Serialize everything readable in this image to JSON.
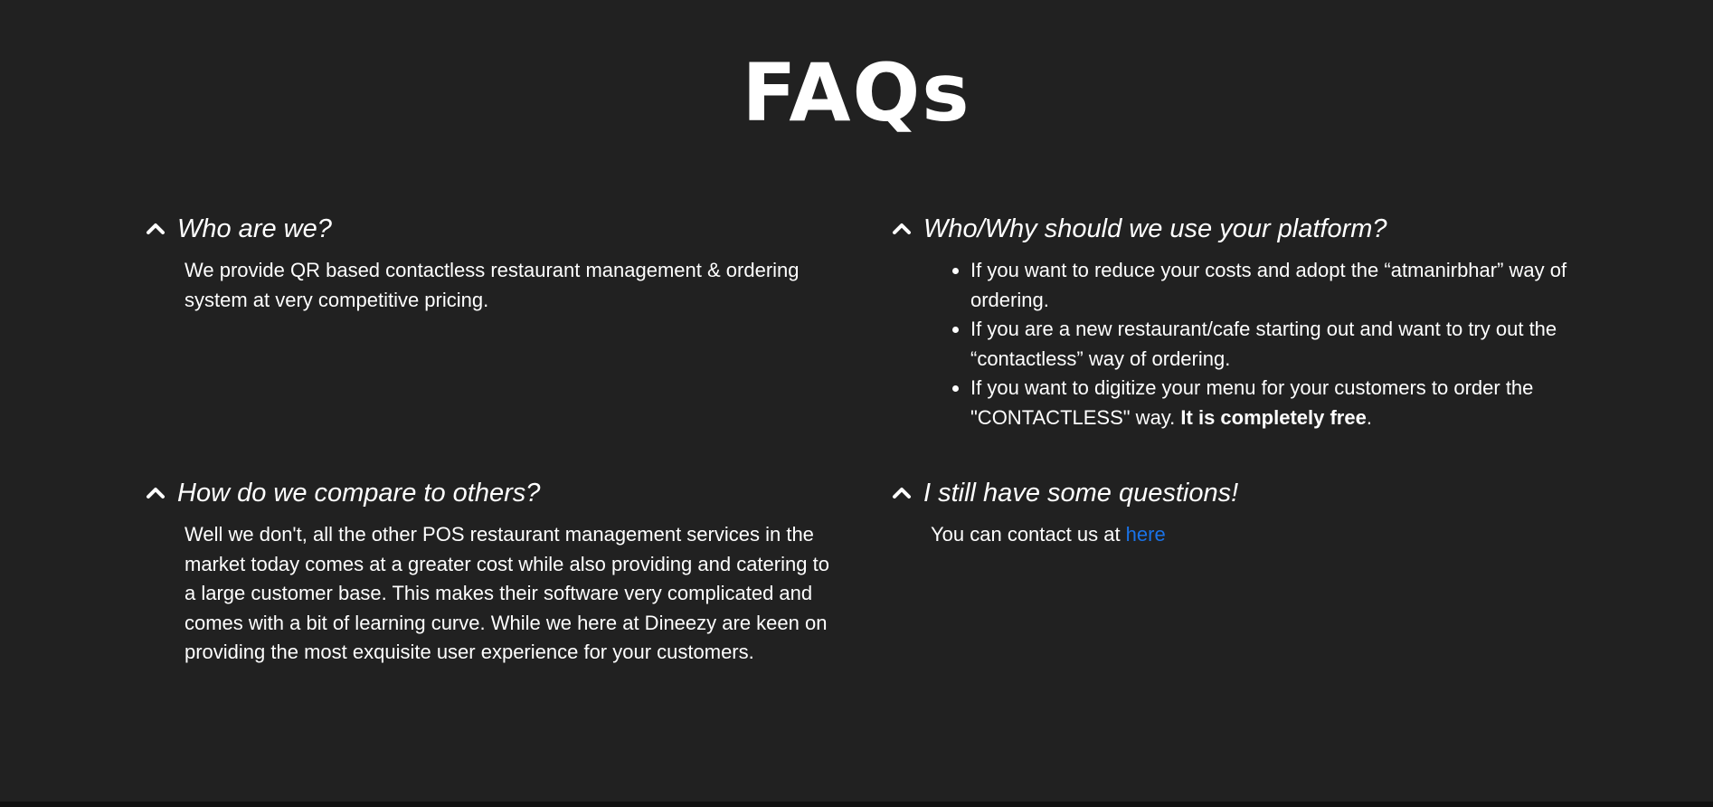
{
  "page": {
    "title": "FAQs"
  },
  "faqs": [
    {
      "question": "Who are we?",
      "answer": "We provide QR based contactless restaurant management & ordering system at very competitive pricing."
    },
    {
      "question": "Who/Why should we use your platform?",
      "bullets": [
        "If you want to reduce your costs and adopt the “atmanirbhar” way of ordering.",
        "If you are a new restaurant/cafe starting out and want to try out the “contactless” way of ordering."
      ],
      "bullet3_prefix": "If you want to digitize your menu for your customers to order the \"CONTACTLESS\" way. ",
      "bullet3_bold": "It is completely free",
      "bullet3_suffix": "."
    },
    {
      "question": "How do we compare to others?",
      "answer": "Well we don't, all the other POS restaurant management services in the market today comes at a greater cost while also providing and catering to a large customer base. This makes their software very complicated and comes with a bit of learning curve. While we here at Dineezy are keen on providing the most exquisite user experience for your customers."
    },
    {
      "question": "I still have some questions!",
      "answer_prefix": "You can contact us at ",
      "link_label": "here"
    }
  ],
  "colors": {
    "background": "#212121",
    "text": "#ffffff",
    "link": "#1a73e8"
  },
  "icons": {
    "toggle": "chevron-up-icon"
  }
}
